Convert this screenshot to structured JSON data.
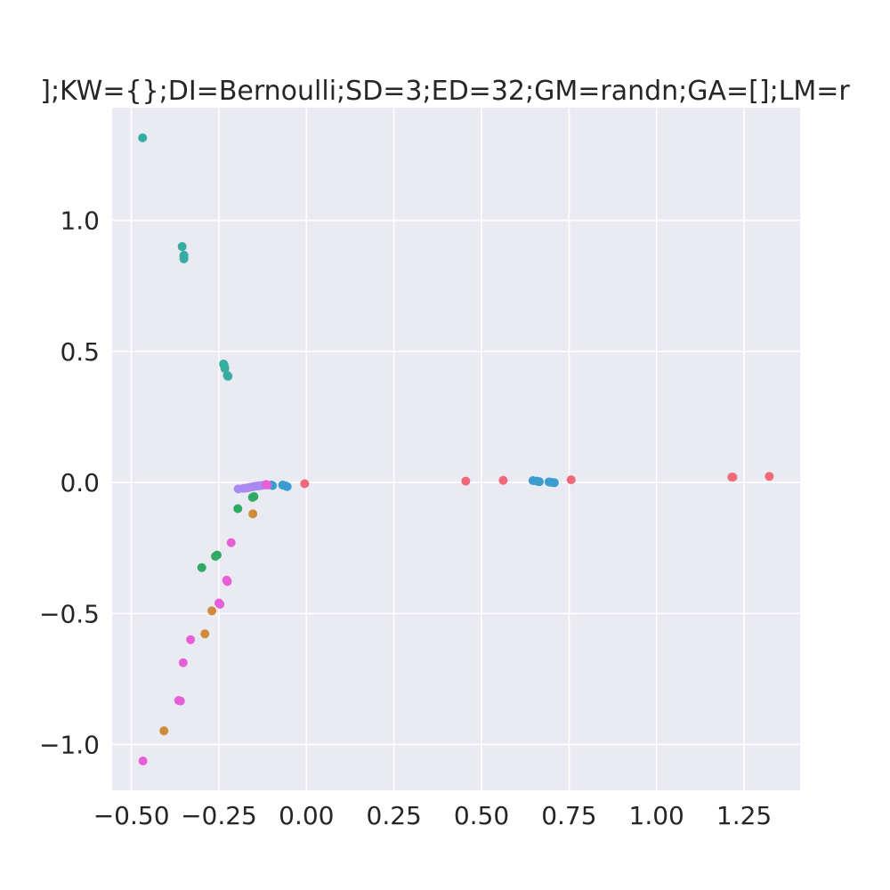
{
  "chart_data": {
    "type": "scatter",
    "title": "];KW={};DI=Bernoulli;SD=3;ED=32;GM=randn;GA=[];LM=r",
    "xlabel": "",
    "ylabel": "",
    "xlim": [
      -0.555,
      1.41
    ],
    "ylim": [
      -1.175,
      1.43
    ],
    "grid": true,
    "legend": "none",
    "x_ticks": [
      {
        "value": -0.5,
        "label": "−0.50"
      },
      {
        "value": -0.25,
        "label": "−0.25"
      },
      {
        "value": 0.0,
        "label": "0.00"
      },
      {
        "value": 0.25,
        "label": "0.25"
      },
      {
        "value": 0.5,
        "label": "0.50"
      },
      {
        "value": 0.75,
        "label": "0.75"
      },
      {
        "value": 1.0,
        "label": "1.00"
      },
      {
        "value": 1.25,
        "label": "1.25"
      }
    ],
    "y_ticks": [
      {
        "value": -1.0,
        "label": "−1.0"
      },
      {
        "value": -0.5,
        "label": "−0.5"
      },
      {
        "value": 0.0,
        "label": "0.0"
      },
      {
        "value": 0.5,
        "label": "0.5"
      },
      {
        "value": 1.0,
        "label": "1.0"
      }
    ],
    "series": [
      {
        "name": "series-red",
        "color": "#f0697a",
        "x": [
          -0.005,
          0.455,
          0.562,
          0.756,
          1.215,
          1.218,
          1.322
        ],
        "y": [
          -0.005,
          0.005,
          0.008,
          0.01,
          0.02,
          0.02,
          0.023
        ]
      },
      {
        "name": "series-orange",
        "color": "#cf8a3a",
        "x": [
          -0.407,
          -0.29,
          -0.27,
          -0.153
        ],
        "y": [
          -0.948,
          -0.578,
          -0.49,
          -0.12
        ]
      },
      {
        "name": "series-green",
        "color": "#2eaa63",
        "x": [
          -0.299,
          -0.26,
          -0.255,
          -0.196,
          -0.154,
          -0.15
        ],
        "y": [
          -0.325,
          -0.282,
          -0.277,
          -0.1,
          -0.057,
          -0.054
        ]
      },
      {
        "name": "series-teal",
        "color": "#36ada0",
        "x": [
          -0.468,
          -0.355,
          -0.35,
          -0.35,
          -0.35,
          -0.237,
          -0.235,
          -0.233,
          -0.226,
          -0.224
        ],
        "y": [
          1.315,
          0.9,
          0.867,
          0.853,
          0.862,
          0.452,
          0.448,
          0.435,
          0.408,
          0.405
        ]
      },
      {
        "name": "series-blue",
        "color": "#3a9ccf",
        "x": [
          -0.1,
          -0.097,
          -0.068,
          -0.06,
          -0.055,
          0.647,
          0.658,
          0.665,
          0.693,
          0.7,
          0.708
        ],
        "y": [
          -0.01,
          -0.012,
          -0.01,
          -0.013,
          -0.016,
          0.007,
          0.005,
          0.003,
          0.002,
          0.0,
          -0.001
        ]
      },
      {
        "name": "series-purple",
        "color": "#a98af2",
        "x": [
          -0.195,
          -0.18,
          -0.17,
          -0.162,
          -0.155,
          -0.148,
          -0.142,
          -0.135,
          -0.128,
          -0.12
        ],
        "y": [
          -0.025,
          -0.023,
          -0.021,
          -0.019,
          -0.017,
          -0.015,
          -0.014,
          -0.013,
          -0.012,
          -0.01
        ]
      },
      {
        "name": "series-magenta",
        "color": "#e75fd6",
        "x": [
          -0.467,
          -0.365,
          -0.36,
          -0.352,
          -0.331,
          -0.25,
          -0.247,
          -0.228,
          -0.226,
          -0.215,
          -0.115,
          -0.112
        ],
        "y": [
          -1.063,
          -0.832,
          -0.834,
          -0.688,
          -0.6,
          -0.46,
          -0.465,
          -0.373,
          -0.378,
          -0.23,
          -0.008,
          -0.01
        ]
      }
    ]
  }
}
